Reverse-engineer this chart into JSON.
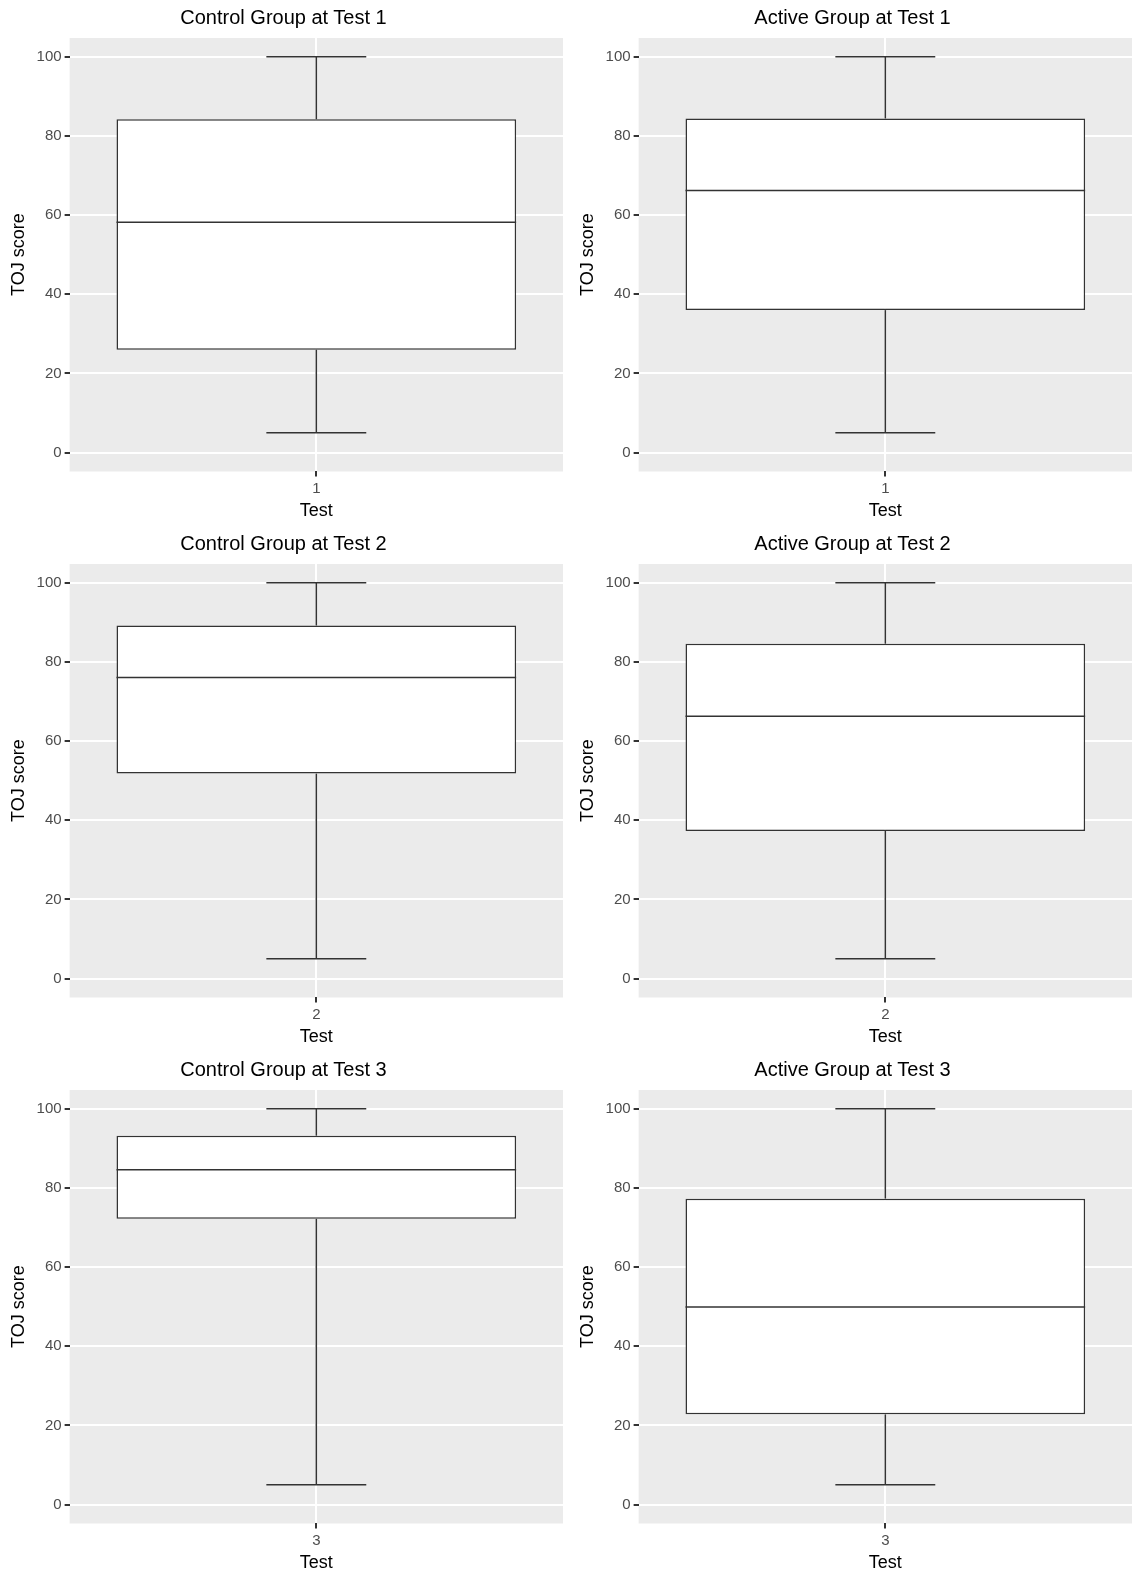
{
  "chart_data": [
    {
      "type": "box",
      "title": "Control Group at Test 1",
      "xlabel": "Test",
      "ylabel": "TOJ score",
      "categories": [
        "1"
      ],
      "boxes": [
        {
          "low": 5,
          "q1": 26,
          "median": 58.2,
          "q3": 84.2,
          "high": 100
        }
      ],
      "color": "#333333",
      "ylim": [
        -4.75,
        104.75
      ],
      "yticks": [
        0,
        20,
        40,
        60,
        80,
        100
      ],
      "grid": true
    },
    {
      "type": "box",
      "title": "Active Group at Test 1",
      "xlabel": "Test",
      "ylabel": "TOJ score",
      "categories": [
        "1"
      ],
      "boxes": [
        {
          "low": 5,
          "q1": 36,
          "median": 66.2,
          "q3": 84.4,
          "high": 100
        }
      ],
      "color": "#333333",
      "ylim": [
        -4.75,
        104.75
      ],
      "yticks": [
        0,
        20,
        40,
        60,
        80,
        100
      ],
      "grid": true
    },
    {
      "type": "box",
      "title": "Control Group at Test 2",
      "xlabel": "Test",
      "ylabel": "TOJ score",
      "categories": [
        "2"
      ],
      "boxes": [
        {
          "low": 5,
          "q1": 51.8,
          "median": 76.1,
          "q3": 89.2,
          "high": 100
        }
      ],
      "color": "#333333",
      "ylim": [
        -4.75,
        104.75
      ],
      "yticks": [
        0,
        20,
        40,
        60,
        80,
        100
      ],
      "grid": true
    },
    {
      "type": "box",
      "title": "Active Group at Test 2",
      "xlabel": "Test",
      "ylabel": "TOJ score",
      "categories": [
        "2"
      ],
      "boxes": [
        {
          "low": 5,
          "q1": 37.3,
          "median": 66.3,
          "q3": 84.6,
          "high": 100
        }
      ],
      "color": "#333333",
      "ylim": [
        -4.75,
        104.75
      ],
      "yticks": [
        0,
        20,
        40,
        60,
        80,
        100
      ],
      "grid": true
    },
    {
      "type": "box",
      "title": "Control Group at Test 3",
      "xlabel": "Test",
      "ylabel": "TOJ score",
      "categories": [
        "3"
      ],
      "boxes": [
        {
          "low": 5,
          "q1": 72.2,
          "median": 84.6,
          "q3": 93.2,
          "high": 100
        }
      ],
      "color": "#333333",
      "ylim": [
        -4.75,
        104.75
      ],
      "yticks": [
        0,
        20,
        40,
        60,
        80,
        100
      ],
      "grid": true
    },
    {
      "type": "box",
      "title": "Active Group at Test 3",
      "xlabel": "Test",
      "ylabel": "TOJ score",
      "categories": [
        "3"
      ],
      "boxes": [
        {
          "low": 5,
          "q1": 22.8,
          "median": 49.9,
          "q3": 77.3,
          "high": 100
        }
      ],
      "color": "#333333",
      "ylim": [
        -4.75,
        104.75
      ],
      "yticks": [
        0,
        20,
        40,
        60,
        80,
        100
      ],
      "grid": true
    }
  ]
}
